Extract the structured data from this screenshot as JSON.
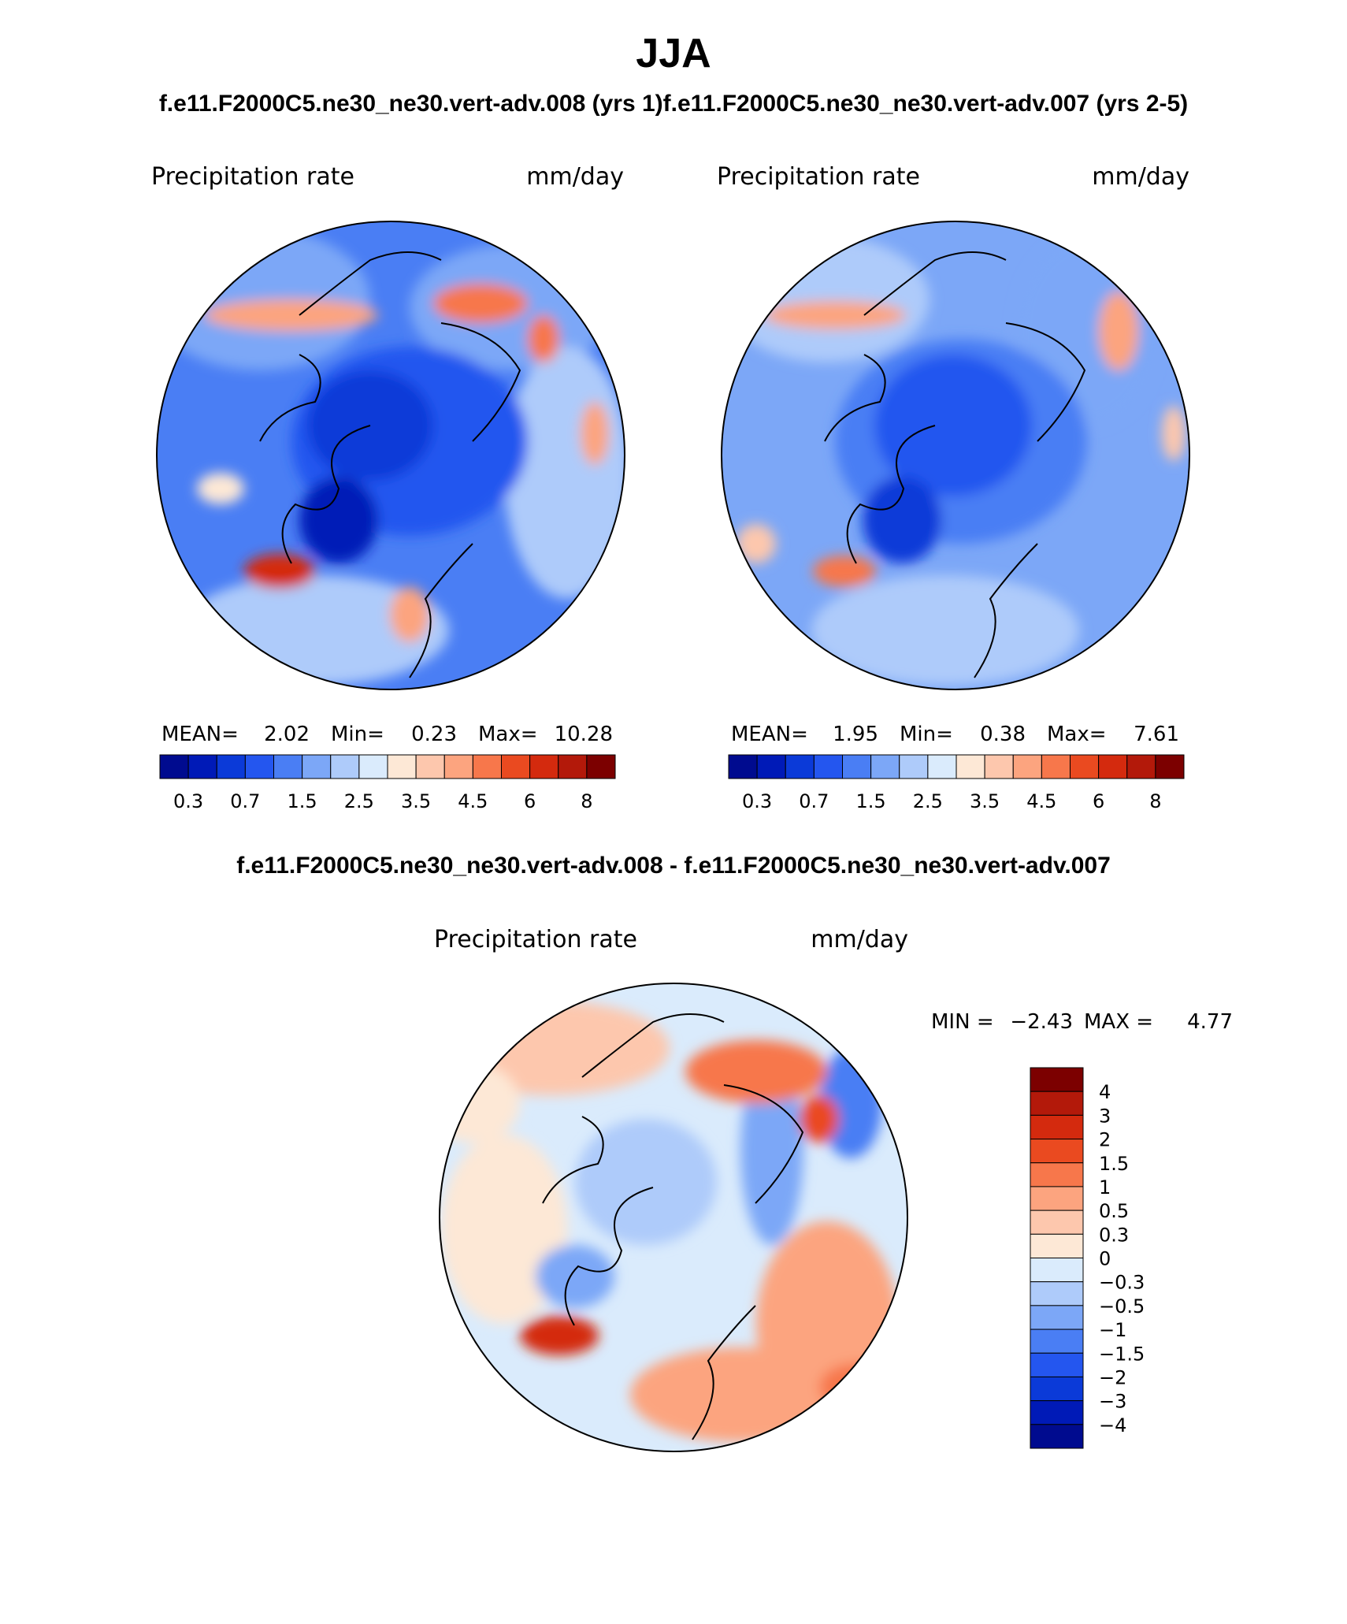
{
  "figure": {
    "season_title": "JJA",
    "subtitle_top": "f.e11.F2000C5.ne30_ne30.vert-adv.008 (yrs 1)f.e11.F2000C5.ne30_ne30.vert-adv.007 (yrs 2-5)",
    "subtitle_diff": "f.e11.F2000C5.ne30_ne30.vert-adv.008 - f.e11.F2000C5.ne30_ne30.vert-adv.007"
  },
  "panels": [
    {
      "variable": "Precipitation rate",
      "units": "mm/day",
      "mean_label": "MEAN=",
      "mean": "2.02",
      "min_label": "Min=",
      "min": "0.23",
      "max_label": "Max=",
      "max": "10.28"
    },
    {
      "variable": "Precipitation rate",
      "units": "mm/day",
      "mean_label": "MEAN=",
      "mean": "1.95",
      "min_label": "Min=",
      "min": "0.38",
      "max_label": "Max=",
      "max": "7.61"
    },
    {
      "variable": "Precipitation rate",
      "units": "mm/day",
      "min_label": "MIN =",
      "min": "−2.43",
      "max_label": "MAX =",
      "max": "4.77"
    }
  ],
  "chart_data": [
    {
      "type": "heatmap",
      "projection": "north-polar-stereographic",
      "title": "Precipitation rate",
      "units": "mm/day",
      "colorbar_levels": [
        "0.3",
        "0.7",
        "1.5",
        "2.5",
        "3.5",
        "4.5",
        "6",
        "8"
      ],
      "colorbar_colors": [
        "#000b8f",
        "#001ab7",
        "#0b3ad8",
        "#2456ef",
        "#4a7ef4",
        "#7ca7f7",
        "#aecbfa",
        "#daebfc",
        "#fde8d6",
        "#fdc7ad",
        "#fca47f",
        "#f7774b",
        "#ea4a20",
        "#d42a0e",
        "#b3190a",
        "#7c0000"
      ],
      "mean": 2.02,
      "min": 0.23,
      "max": 10.28
    },
    {
      "type": "heatmap",
      "projection": "north-polar-stereographic",
      "title": "Precipitation rate",
      "units": "mm/day",
      "colorbar_levels": [
        "0.3",
        "0.7",
        "1.5",
        "2.5",
        "3.5",
        "4.5",
        "6",
        "8"
      ],
      "colorbar_colors": [
        "#000b8f",
        "#001ab7",
        "#0b3ad8",
        "#2456ef",
        "#4a7ef4",
        "#7ca7f7",
        "#aecbfa",
        "#daebfc",
        "#fde8d6",
        "#fdc7ad",
        "#fca47f",
        "#f7774b",
        "#ea4a20",
        "#d42a0e",
        "#b3190a",
        "#7c0000"
      ],
      "mean": 1.95,
      "min": 0.38,
      "max": 7.61
    },
    {
      "type": "heatmap",
      "projection": "north-polar-stereographic",
      "title": "Precipitation rate",
      "units": "mm/day",
      "colorbar_levels": [
        "4",
        "3",
        "2",
        "1.5",
        "1",
        "0.5",
        "0.3",
        "0",
        "−0.3",
        "−0.5",
        "−1",
        "−1.5",
        "−2",
        "−3",
        "−4"
      ],
      "colorbar_colors": [
        "#7c0000",
        "#b3190a",
        "#d42a0e",
        "#ea4a20",
        "#f7774b",
        "#fca47f",
        "#fdc7ad",
        "#fde8d6",
        "#daebfc",
        "#aecbfa",
        "#7ca7f7",
        "#4a7ef4",
        "#2456ef",
        "#0b3ad8",
        "#001ab7",
        "#000b8f"
      ],
      "min": -2.43,
      "max": 4.77
    }
  ]
}
